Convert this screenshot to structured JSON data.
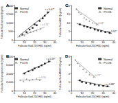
{
  "chart_data": [
    {
      "type": "scatter",
      "title": "A",
      "x_label": "Follicular fluid 25(OH)D (ng/ml)",
      "y_label": "Follicular fluid estradiol (ng/ml)",
      "xlim": [
        0,
        40
      ],
      "xticks": [
        0,
        10,
        20,
        30,
        40
      ],
      "ylim": [
        0,
        2000
      ],
      "yticks": [
        0,
        500,
        1000,
        1500,
        2000
      ],
      "legend": "upper left",
      "series": [
        {
          "name": "Normal",
          "color": "#000000",
          "marker": "square",
          "x": [
            8,
            12,
            15,
            18,
            20,
            22,
            25,
            28,
            30,
            33
          ],
          "values": [
            300,
            450,
            600,
            700,
            900,
            850,
            1100,
            1250,
            1400,
            1600
          ],
          "fit": {
            "x": [
              5,
              35
            ],
            "values": [
              250,
              1650
            ],
            "label": "r = 0.67*"
          }
        },
        {
          "name": "PCOS",
          "color": "#808080",
          "marker": "triangle",
          "x": [
            5,
            8,
            10,
            13,
            16,
            19,
            22,
            26
          ],
          "values": [
            200,
            300,
            250,
            400,
            450,
            500,
            550,
            650
          ],
          "fit": {
            "x": [
              3,
              30
            ],
            "values": [
              150,
              750
            ],
            "label": "r = 0.51*"
          }
        }
      ]
    },
    {
      "type": "scatter",
      "title": "C",
      "x_label": "Follicular fluid 25(OH)D (ng/ml)",
      "y_label": "Follicular fluid AMH (ng/ml)",
      "xlim": [
        0,
        40
      ],
      "xticks": [
        0,
        10,
        20,
        30,
        40
      ],
      "ylim": [
        0,
        20
      ],
      "yticks": [
        0,
        5,
        10,
        15,
        20
      ],
      "legend": "upper right",
      "series": [
        {
          "name": "Normal",
          "color": "#000000",
          "marker": "square",
          "x": [
            8,
            12,
            15,
            18,
            22,
            25,
            28,
            32,
            36
          ],
          "values": [
            9,
            8,
            7.5,
            7,
            6,
            5.5,
            5,
            4.5,
            4
          ],
          "fit": {
            "x": [
              5,
              38
            ],
            "values": [
              9.5,
              3.8
            ],
            "label": "r = -0.52*"
          }
        },
        {
          "name": "PCOS",
          "color": "#808080",
          "marker": "triangle",
          "x": [
            5,
            7,
            9,
            12,
            14,
            17,
            20,
            24
          ],
          "values": [
            18,
            16,
            15,
            13,
            12,
            11,
            10,
            9
          ],
          "fit": {
            "x": [
              4,
              26
            ],
            "values": [
              18,
              8.5
            ],
            "label": "r = -0.63*"
          }
        }
      ]
    },
    {
      "type": "scatter",
      "title": "B",
      "x_label": "Follicular fluid 25(OH)D (ng/ml)",
      "y_label": "Follicular fluid progesterone (ng/ml)",
      "xlim": [
        0,
        40
      ],
      "xticks": [
        0,
        10,
        20,
        30,
        40
      ],
      "ylim": [
        0,
        8000
      ],
      "yticks": [
        0,
        2000,
        4000,
        6000,
        8000
      ],
      "legend": "upper left",
      "series": [
        {
          "name": "Normal",
          "color": "#000000",
          "marker": "square",
          "x": [
            10,
            14,
            18,
            20,
            24,
            27,
            30,
            34
          ],
          "values": [
            4000,
            4500,
            4800,
            5200,
            5500,
            5900,
            6300,
            6800
          ],
          "fit": {
            "x": [
              8,
              36
            ],
            "values": [
              3900,
              6900
            ],
            "label": "r = 0.59*"
          }
        },
        {
          "name": "PCOS",
          "color": "#808080",
          "marker": "triangle",
          "x": [
            6,
            9,
            12,
            15,
            18,
            22,
            25
          ],
          "values": [
            2500,
            2200,
            2700,
            2400,
            2600,
            2800,
            2500
          ],
          "fit": {
            "x": [
              5,
              27
            ],
            "values": [
              2450,
              2600
            ],
            "label": "r = 0.10"
          }
        }
      ]
    },
    {
      "type": "scatter",
      "title": "D",
      "x_label": "Follicular fluid 25(OH)D (ng/ml)",
      "y_label": "Follicular fluid AMHR-II (ng/ml)",
      "xlim": [
        0,
        40
      ],
      "xticks": [
        0,
        10,
        20,
        30,
        40
      ],
      "ylim": [
        0,
        4
      ],
      "yticks": [
        0,
        1,
        2,
        3,
        4
      ],
      "legend": "upper right",
      "series": [
        {
          "name": "Normal",
          "color": "#000000",
          "marker": "square",
          "x": [
            8,
            10,
            14,
            18,
            22,
            26,
            30,
            34
          ],
          "values": [
            1.2,
            1.0,
            0.9,
            0.8,
            0.7,
            0.6,
            0.55,
            0.5
          ],
          "fit": {
            "x": [
              6,
              36
            ],
            "values": [
              1.2,
              0.45
            ],
            "label": "r = -0.48*"
          }
        },
        {
          "name": "PCOS",
          "color": "#808080",
          "marker": "triangle",
          "x": [
            4,
            6,
            8,
            11,
            14,
            17,
            21
          ],
          "values": [
            3.6,
            3.2,
            2.9,
            2.5,
            2.2,
            1.9,
            1.6
          ],
          "fit": {
            "x": [
              3,
              23
            ],
            "values": [
              3.6,
              1.5
            ],
            "label": "r = -0.71*"
          }
        }
      ]
    }
  ]
}
